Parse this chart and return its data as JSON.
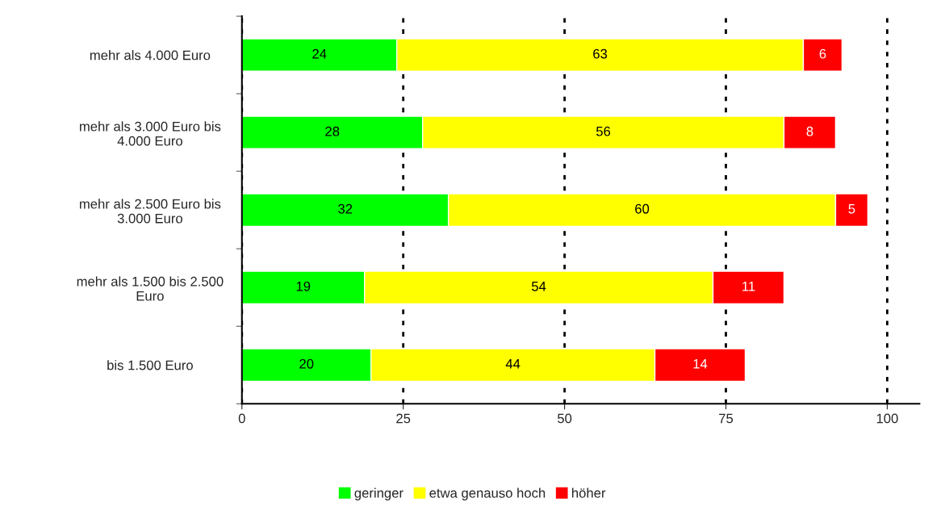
{
  "chart_data": {
    "type": "bar",
    "orientation": "horizontal",
    "stacked": true,
    "categories": [
      "mehr als 4.000 Euro",
      "mehr als 3.000 Euro bis\n4.000 Euro",
      "mehr als 2.500 Euro bis\n3.000 Euro",
      "mehr als 1.500 bis 2.500\nEuro",
      "bis 1.500 Euro"
    ],
    "series": [
      {
        "name": "geringer",
        "color": "#00ff00",
        "values": [
          24,
          28,
          32,
          19,
          20
        ]
      },
      {
        "name": "etwa genauso hoch",
        "color": "#ffff00",
        "values": [
          63,
          56,
          60,
          54,
          44
        ]
      },
      {
        "name": "höher",
        "color": "#ff0000",
        "values": [
          6,
          8,
          5,
          11,
          14
        ]
      }
    ],
    "xlim": [
      0,
      105
    ],
    "xticks": [
      0,
      25,
      50,
      75,
      100
    ],
    "grid": "x",
    "legend": "bottom",
    "data_labels": true
  }
}
